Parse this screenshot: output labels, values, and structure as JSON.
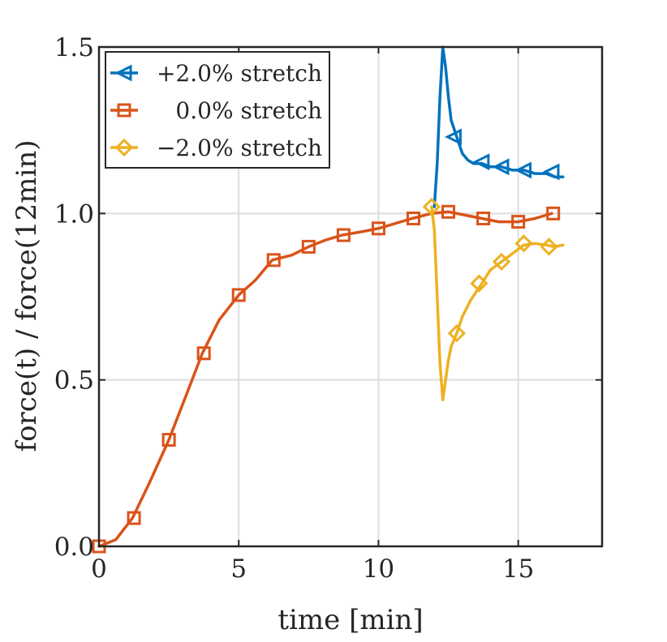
{
  "chart_data": {
    "type": "line",
    "title": "",
    "xlabel": "time [min]",
    "ylabel": "force(t)  / force(12min)",
    "xlim": [
      0,
      18
    ],
    "ylim": [
      0,
      1.5
    ],
    "xticks": [
      0,
      5,
      10,
      15
    ],
    "xtick_labels": [
      "0",
      "5",
      "10",
      "15"
    ],
    "yticks": [
      0,
      0.5,
      1.0,
      1.5
    ],
    "ytick_labels": [
      "0.0",
      "0.5",
      "1.0",
      "1.5"
    ],
    "grid": true,
    "legend_position": "top-left",
    "series": [
      {
        "name": "+2.0% stretch",
        "color": "#0072BD",
        "marker": "triangle-left",
        "x": [
          12.0,
          12.1,
          12.2,
          12.3,
          12.4,
          12.5,
          12.6,
          12.8,
          13.0,
          13.2,
          13.4,
          13.7,
          14.0,
          14.4,
          14.8,
          15.2,
          15.6,
          16.0,
          16.3,
          16.6
        ],
        "y": [
          1.02,
          1.15,
          1.35,
          1.5,
          1.44,
          1.35,
          1.28,
          1.23,
          1.18,
          1.16,
          1.15,
          1.15,
          1.14,
          1.14,
          1.13,
          1.13,
          1.12,
          1.12,
          1.11,
          1.11
        ],
        "marker_x": [
          12.7,
          13.7,
          14.4,
          15.2,
          16.2
        ],
        "marker_y": [
          1.23,
          1.155,
          1.14,
          1.13,
          1.125
        ]
      },
      {
        "name": "0.0% stretch",
        "color": "#D95319",
        "marker": "square",
        "x": [
          0,
          0.6,
          1.2,
          1.8,
          2.5,
          3.1,
          3.7,
          4.3,
          5.0,
          5.6,
          6.2,
          6.9,
          7.5,
          8.1,
          8.7,
          9.4,
          10.0,
          10.6,
          11.2,
          11.9,
          12.5,
          13.1,
          13.7,
          14.3,
          15.0,
          15.6,
          16.2
        ],
        "y": [
          0,
          0.02,
          0.085,
          0.19,
          0.32,
          0.45,
          0.58,
          0.68,
          0.755,
          0.8,
          0.86,
          0.875,
          0.9,
          0.92,
          0.935,
          0.945,
          0.955,
          0.97,
          0.985,
          1.0,
          1.005,
          0.995,
          0.985,
          0.975,
          0.975,
          0.985,
          1.0
        ],
        "marker_x": [
          0,
          1.25,
          2.5,
          3.75,
          5.0,
          6.25,
          7.5,
          8.75,
          10.0,
          11.25,
          12.5,
          13.75,
          15.0,
          16.25
        ],
        "marker_y": [
          0,
          0.085,
          0.32,
          0.58,
          0.755,
          0.86,
          0.9,
          0.935,
          0.955,
          0.985,
          1.005,
          0.985,
          0.975,
          1.0
        ]
      },
      {
        "name": "−2.0% stretch",
        "color": "#EDB120",
        "marker": "diamond",
        "x": [
          11.9,
          12.0,
          12.1,
          12.2,
          12.3,
          12.4,
          12.5,
          12.6,
          12.8,
          13.0,
          13.3,
          13.7,
          14.0,
          14.4,
          14.8,
          15.2,
          15.6,
          16.0,
          16.3,
          16.6
        ],
        "y": [
          1.02,
          0.95,
          0.75,
          0.55,
          0.44,
          0.5,
          0.56,
          0.6,
          0.64,
          0.69,
          0.74,
          0.79,
          0.83,
          0.855,
          0.88,
          0.905,
          0.91,
          0.905,
          0.9,
          0.905
        ],
        "marker_x": [
          11.9,
          12.8,
          13.6,
          14.4,
          15.2,
          16.1
        ],
        "marker_y": [
          1.02,
          0.64,
          0.79,
          0.855,
          0.91,
          0.9
        ]
      }
    ]
  }
}
